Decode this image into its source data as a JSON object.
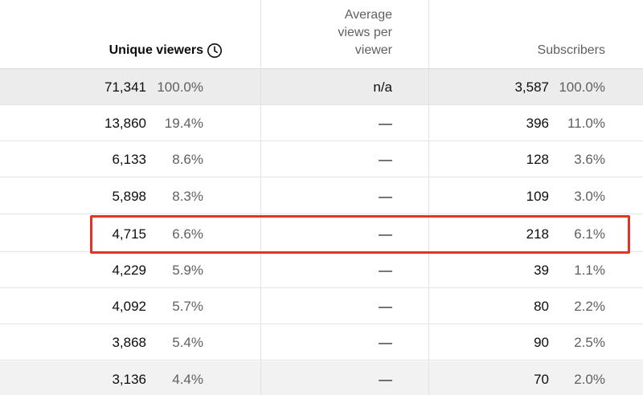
{
  "header": {
    "unique_viewers": "Unique viewers",
    "clock_icon": "clock-icon",
    "avg_views_line1": "Average",
    "avg_views_line2": "views per",
    "avg_views_line3": "viewer",
    "subscribers": "Subscribers"
  },
  "rows": [
    {
      "uv": "71,341",
      "uv_pct": "100.0%",
      "avg": "n/a",
      "subs": "3,587",
      "subs_pct": "100.0%"
    },
    {
      "uv": "13,860",
      "uv_pct": "19.4%",
      "avg": "—",
      "subs": "396",
      "subs_pct": "11.0%"
    },
    {
      "uv": "6,133",
      "uv_pct": "8.6%",
      "avg": "—",
      "subs": "128",
      "subs_pct": "3.6%"
    },
    {
      "uv": "5,898",
      "uv_pct": "8.3%",
      "avg": "—",
      "subs": "109",
      "subs_pct": "3.0%"
    },
    {
      "uv": "4,715",
      "uv_pct": "6.6%",
      "avg": "—",
      "subs": "218",
      "subs_pct": "6.1%"
    },
    {
      "uv": "4,229",
      "uv_pct": "5.9%",
      "avg": "—",
      "subs": "39",
      "subs_pct": "1.1%"
    },
    {
      "uv": "4,092",
      "uv_pct": "5.7%",
      "avg": "—",
      "subs": "80",
      "subs_pct": "2.2%"
    },
    {
      "uv": "3,868",
      "uv_pct": "5.4%",
      "avg": "—",
      "subs": "90",
      "subs_pct": "2.5%"
    },
    {
      "uv": "3,136",
      "uv_pct": "4.4%",
      "avg": "—",
      "subs": "70",
      "subs_pct": "2.0%"
    }
  ],
  "colors": {
    "highlight": "#e63323",
    "total_row_bg": "#ececec"
  }
}
